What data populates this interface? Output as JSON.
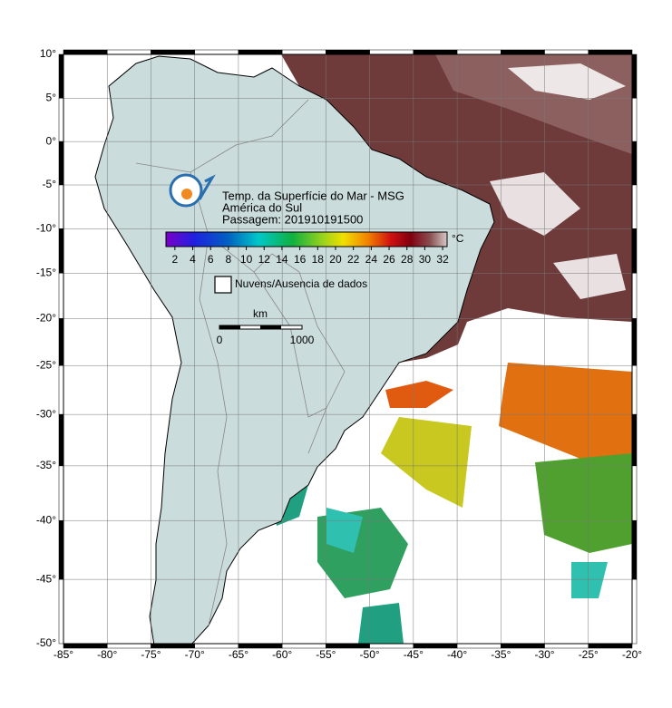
{
  "map": {
    "title_lines": [
      "Temp. da Superfície do Mar - MSG",
      "América do Sul",
      "Passagem: 201910191500"
    ],
    "colorbar": {
      "unit": "°C",
      "range": [
        1,
        32.5
      ],
      "ticks": [
        2,
        4,
        6,
        8,
        10,
        12,
        14,
        16,
        18,
        20,
        22,
        24,
        26,
        28,
        30,
        32
      ]
    },
    "legend": "Nuvens/Ausencia de dados",
    "scale": {
      "unit": "km",
      "labels": [
        0,
        1000
      ]
    },
    "lonlim": [
      -85,
      -20
    ],
    "latlim": [
      -50,
      10
    ],
    "lon_ticks": [
      {
        "value": -85,
        "label": "-85°"
      },
      {
        "value": -80,
        "label": "-80°"
      },
      {
        "value": -75,
        "label": "-75°"
      },
      {
        "value": -70,
        "label": "-70°"
      },
      {
        "value": -65,
        "label": "-65°"
      },
      {
        "value": -60,
        "label": "-60°"
      },
      {
        "value": -55,
        "label": "-55°"
      },
      {
        "value": -50,
        "label": "-50°"
      },
      {
        "value": -45,
        "label": "-45°"
      },
      {
        "value": -40,
        "label": "-40°"
      },
      {
        "value": -35,
        "label": "-35°"
      },
      {
        "value": -30,
        "label": "-30°"
      },
      {
        "value": -25,
        "label": "-25°"
      },
      {
        "value": -20,
        "label": "-20°"
      }
    ],
    "lat_ticks": [
      {
        "value": 10,
        "label": "10°"
      },
      {
        "value": 5,
        "label": "5°"
      },
      {
        "value": 0,
        "label": "0°"
      },
      {
        "value": -5,
        "label": "-5°"
      },
      {
        "value": -10,
        "label": "-10°"
      },
      {
        "value": -15,
        "label": "-15°"
      },
      {
        "value": -20,
        "label": "-20°"
      },
      {
        "value": -25,
        "label": "-25°"
      },
      {
        "value": -30,
        "label": "-30°"
      },
      {
        "value": -35,
        "label": "-35°"
      },
      {
        "value": -40,
        "label": "-40°"
      },
      {
        "value": -45,
        "label": "-45°"
      },
      {
        "value": -50,
        "label": "-50°"
      }
    ]
  }
}
